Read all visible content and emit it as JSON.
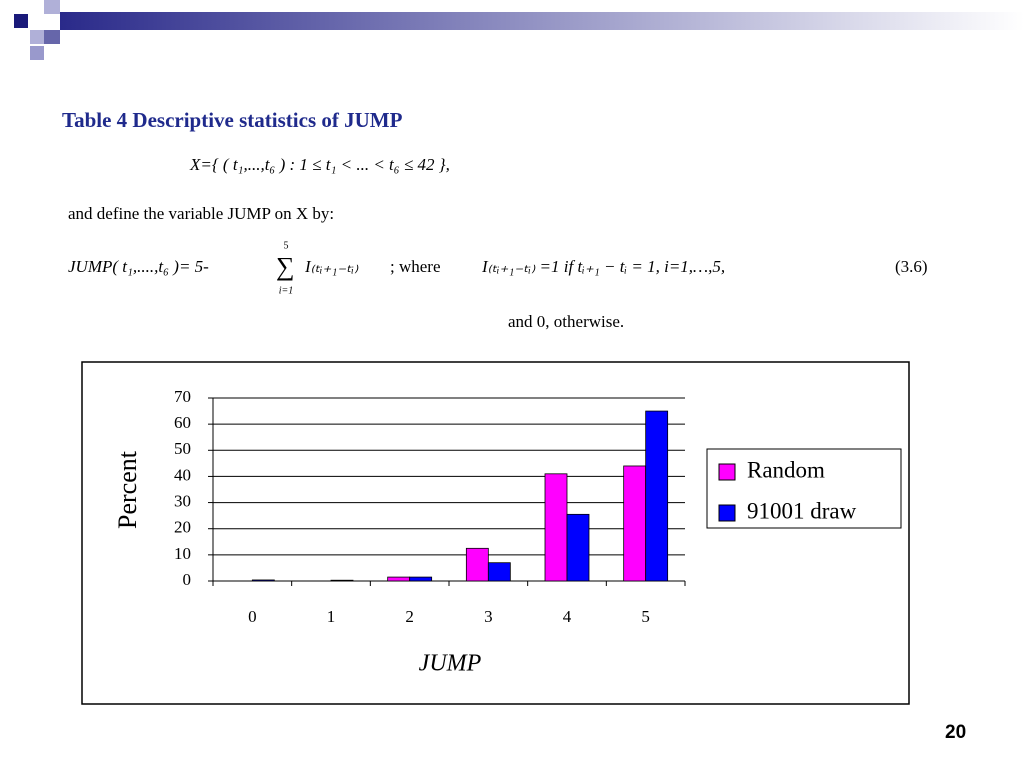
{
  "slide": {
    "title": "Table 4 Descriptive statistics of JUMP",
    "definition_set": "X={ ( t₁,...,t₆ ) :  1 ≤ t₁ < ... < t₆ ≤ 42 },",
    "define_text": "and define the variable JUMP on X by:",
    "jump_formula": "JUMP( t₁,....,t₆ )= 5-",
    "sum_upper": "5",
    "sum_lower": "i=1",
    "indicator": "I₍ₜᵢ₊₁₋ₜᵢ₎",
    "where_text": "; where",
    "indicator_condition": "I₍ₜᵢ₊₁₋ₜᵢ₎ =1 if   tᵢ₊₁ − tᵢ = 1, i=1,…,5,",
    "equation_number": "(3.6)",
    "otherwise_text": "and 0, otherwise.",
    "page_number": "20"
  },
  "chart_data": {
    "type": "bar",
    "categories": [
      "0",
      "1",
      "2",
      "3",
      "4",
      "5"
    ],
    "series": [
      {
        "name": "Random",
        "color": "#ff00ff",
        "values": [
          0,
          0,
          1.5,
          12.5,
          41,
          44
        ]
      },
      {
        "name": "91001 draw",
        "color": "#0000ff",
        "values": [
          0.4,
          0.3,
          1.5,
          7,
          25.5,
          65
        ]
      }
    ],
    "ylim": [
      0,
      70
    ],
    "yticks": [
      0,
      10,
      20,
      30,
      40,
      50,
      60,
      70
    ],
    "ylabel": "Percent",
    "xlabel": "JUMP",
    "grid": true,
    "legend": "right"
  }
}
